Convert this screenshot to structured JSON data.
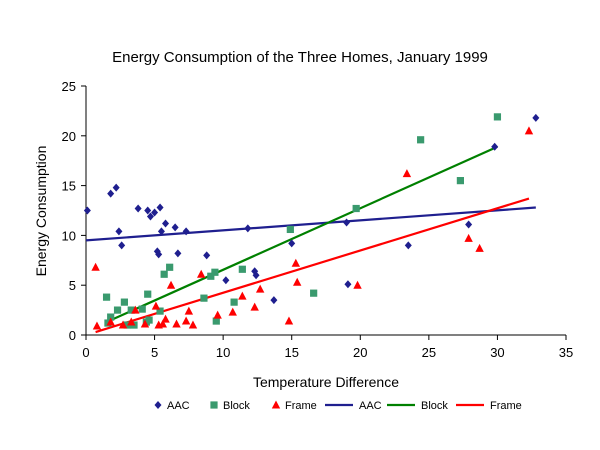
{
  "chart_data": {
    "type": "scatter",
    "title": "Energy Consumption of the Three Homes, January 1999",
    "xlabel": "Temperature Difference",
    "ylabel": "Energy Consumption",
    "xlim": [
      0,
      35
    ],
    "ylim": [
      0,
      25
    ],
    "xticks": [
      "0",
      "5",
      "10",
      "15",
      "20",
      "25",
      "30",
      "35"
    ],
    "yticks": [
      "0",
      "5",
      "10",
      "15",
      "20",
      "25"
    ],
    "grid": false,
    "legend_position": "bottom",
    "series": [
      {
        "name": "AAC",
        "kind": "scatter",
        "marker": "diamond",
        "color": "#1f1f8f",
        "points": [
          [
            0.1,
            12.5
          ],
          [
            1.8,
            14.2
          ],
          [
            2.2,
            14.8
          ],
          [
            2.4,
            10.4
          ],
          [
            2.6,
            9.0
          ],
          [
            3.8,
            12.7
          ],
          [
            4.5,
            12.5
          ],
          [
            4.7,
            11.9
          ],
          [
            5.0,
            12.3
          ],
          [
            5.2,
            8.4
          ],
          [
            5.3,
            8.1
          ],
          [
            5.4,
            12.8
          ],
          [
            5.5,
            10.4
          ],
          [
            5.8,
            11.2
          ],
          [
            6.5,
            10.8
          ],
          [
            6.7,
            8.2
          ],
          [
            7.3,
            10.4
          ],
          [
            8.8,
            8.0
          ],
          [
            10.2,
            5.5
          ],
          [
            11.8,
            10.7
          ],
          [
            12.3,
            6.4
          ],
          [
            12.4,
            6.0
          ],
          [
            13.7,
            3.5
          ],
          [
            15.0,
            9.2
          ],
          [
            19.0,
            11.3
          ],
          [
            19.1,
            5.1
          ],
          [
            23.5,
            9.0
          ],
          [
            27.9,
            11.1
          ],
          [
            29.8,
            18.9
          ],
          [
            32.8,
            21.8
          ]
        ]
      },
      {
        "name": "Block",
        "kind": "scatter",
        "marker": "square",
        "color": "#3a9a6e",
        "points": [
          [
            1.5,
            3.8
          ],
          [
            1.6,
            1.2
          ],
          [
            1.8,
            1.8
          ],
          [
            2.3,
            2.5
          ],
          [
            2.8,
            3.3
          ],
          [
            3.0,
            1.0
          ],
          [
            3.3,
            2.5
          ],
          [
            3.5,
            1.0
          ],
          [
            4.1,
            2.6
          ],
          [
            4.4,
            1.3
          ],
          [
            4.5,
            4.1
          ],
          [
            4.6,
            1.5
          ],
          [
            5.4,
            2.4
          ],
          [
            5.7,
            6.1
          ],
          [
            6.1,
            6.8
          ],
          [
            8.6,
            3.7
          ],
          [
            9.1,
            5.9
          ],
          [
            9.4,
            6.3
          ],
          [
            9.5,
            1.4
          ],
          [
            10.8,
            3.3
          ],
          [
            11.4,
            6.6
          ],
          [
            14.9,
            10.6
          ],
          [
            16.6,
            4.2
          ],
          [
            19.7,
            12.7
          ],
          [
            24.4,
            19.6
          ],
          [
            27.3,
            15.5
          ],
          [
            30.0,
            21.9
          ]
        ]
      },
      {
        "name": "Frame",
        "kind": "scatter",
        "marker": "triangle",
        "color": "#ff0000",
        "points": [
          [
            0.7,
            6.8
          ],
          [
            0.8,
            0.9
          ],
          [
            1.8,
            1.3
          ],
          [
            2.7,
            1.0
          ],
          [
            3.3,
            1.3
          ],
          [
            3.6,
            2.5
          ],
          [
            4.3,
            1.1
          ],
          [
            5.1,
            2.9
          ],
          [
            5.3,
            1.0
          ],
          [
            5.6,
            1.1
          ],
          [
            5.8,
            1.6
          ],
          [
            6.2,
            5.0
          ],
          [
            6.6,
            1.1
          ],
          [
            7.3,
            1.4
          ],
          [
            7.5,
            2.4
          ],
          [
            7.8,
            1.0
          ],
          [
            8.4,
            6.1
          ],
          [
            9.6,
            2.0
          ],
          [
            10.7,
            2.3
          ],
          [
            11.4,
            3.9
          ],
          [
            12.3,
            2.8
          ],
          [
            12.7,
            4.6
          ],
          [
            14.8,
            1.4
          ],
          [
            15.3,
            7.2
          ],
          [
            15.4,
            5.3
          ],
          [
            19.8,
            5.0
          ],
          [
            23.4,
            16.2
          ],
          [
            27.9,
            9.7
          ],
          [
            28.7,
            8.7
          ],
          [
            32.3,
            20.5
          ]
        ]
      },
      {
        "name": "AAC",
        "kind": "line",
        "color": "#1f1f8f",
        "points": [
          [
            0,
            9.5
          ],
          [
            32.8,
            12.8
          ]
        ]
      },
      {
        "name": "Block",
        "kind": "line",
        "color": "#008000",
        "points": [
          [
            1.5,
            1.3
          ],
          [
            30.0,
            18.9
          ]
        ]
      },
      {
        "name": "Frame",
        "kind": "line",
        "color": "#ff0000",
        "points": [
          [
            0.7,
            0.3
          ],
          [
            32.3,
            13.7
          ]
        ]
      }
    ]
  }
}
